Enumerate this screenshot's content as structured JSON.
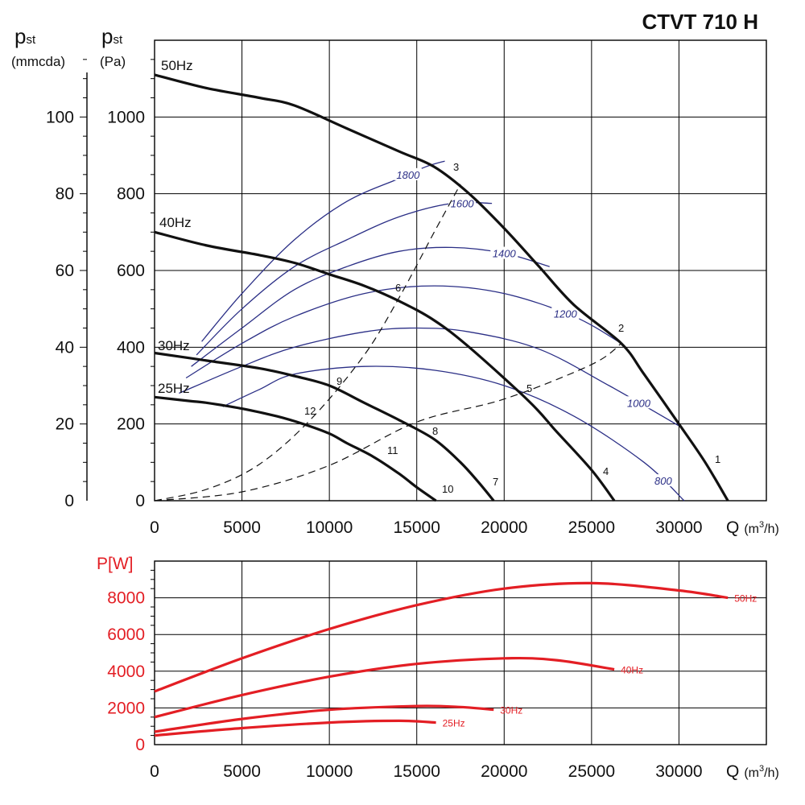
{
  "title": "CTVT 710 H",
  "chart_data": [
    {
      "type": "line",
      "title": "CTVT 710 H",
      "xlabel": "Q (m³/h)",
      "ylabel_left": "pst (mmcda)",
      "ylabel_right": "pst (Pa)",
      "xlim": [
        0,
        35000
      ],
      "ylim_pa": [
        0,
        1200
      ],
      "ylim_mmcda": [
        0,
        120
      ],
      "x_ticks": [
        0,
        5000,
        10000,
        15000,
        20000,
        25000,
        30000
      ],
      "y_ticks_pa": [
        0,
        200,
        400,
        600,
        800,
        1000
      ],
      "y_ticks_mmcda": [
        0,
        20,
        40,
        60,
        80,
        100
      ],
      "grid": true,
      "series": [
        {
          "name": "50Hz",
          "color": "#111111",
          "x": [
            0,
            3000,
            6000,
            8000,
            11000,
            14000,
            16000,
            18000,
            20000,
            22000,
            24000,
            26700,
            28000,
            30000,
            31500,
            32800
          ],
          "y": [
            1110,
            1075,
            1050,
            1030,
            970,
            910,
            870,
            800,
            710,
            610,
            510,
            410,
            330,
            200,
            100,
            0
          ]
        },
        {
          "name": "40Hz",
          "color": "#111111",
          "x": [
            0,
            3000,
            6000,
            8000,
            10000,
            12000,
            14000,
            16000,
            18000,
            21400,
            23000,
            25000,
            26300
          ],
          "y": [
            700,
            665,
            640,
            620,
            590,
            560,
            520,
            470,
            400,
            260,
            180,
            80,
            0
          ]
        },
        {
          "name": "30Hz",
          "color": "#111111",
          "x": [
            0,
            3000,
            6000,
            8000,
            10000,
            12000,
            14000,
            16000,
            17500,
            18500,
            19400
          ],
          "y": [
            385,
            365,
            345,
            325,
            300,
            255,
            210,
            160,
            100,
            50,
            0
          ]
        },
        {
          "name": "25Hz",
          "color": "#111111",
          "x": [
            0,
            2000,
            3000,
            5000,
            7000,
            8500,
            10000,
            11000,
            12500,
            14000,
            15000,
            16100
          ],
          "y": [
            270,
            260,
            255,
            240,
            220,
            200,
            175,
            150,
            115,
            70,
            35,
            0
          ]
        }
      ],
      "rpm_curves": [
        {
          "label": "1800",
          "x": [
            2700,
            5000,
            8000,
            11000,
            14000,
            15500,
            16600
          ],
          "y": [
            415,
            540,
            680,
            780,
            840,
            870,
            885
          ]
        },
        {
          "label": "1600",
          "x": [
            2400,
            5000,
            8000,
            11000,
            14000,
            17000,
            19300
          ],
          "y": [
            380,
            500,
            610,
            680,
            740,
            775,
            775
          ]
        },
        {
          "label": "1400",
          "x": [
            2100,
            5000,
            8000,
            11000,
            14000,
            17000,
            20000,
            22600
          ],
          "y": [
            350,
            450,
            550,
            610,
            650,
            660,
            645,
            610
          ]
        },
        {
          "label": "1200",
          "x": [
            1800,
            5000,
            8000,
            12000,
            16000,
            20000,
            24000,
            26700
          ],
          "y": [
            320,
            410,
            480,
            540,
            560,
            540,
            480,
            410
          ]
        },
        {
          "label": "1000",
          "x": [
            1400,
            5000,
            8000,
            12000,
            15000,
            18000,
            22000,
            26000,
            30000
          ],
          "y": [
            280,
            350,
            400,
            440,
            450,
            440,
            395,
            300,
            195
          ]
        },
        {
          "label": "800",
          "x": [
            3900,
            6000,
            8000,
            12000,
            16000,
            20000,
            24000,
            28000,
            30300
          ],
          "y": [
            245,
            290,
            330,
            350,
            340,
            300,
            220,
            100,
            0
          ]
        }
      ],
      "system_curves": [
        {
          "x": [
            0,
            3000,
            6000,
            9000,
            12000,
            14000,
            16000,
            17500
          ],
          "y": [
            0,
            30,
            95,
            215,
            380,
            530,
            700,
            825
          ]
        },
        {
          "x": [
            0,
            5000,
            10000,
            15000,
            20000,
            25000,
            26700
          ],
          "y": [
            0,
            23,
            92,
            205,
            265,
            355,
            410
          ]
        }
      ],
      "point_labels": [
        "1",
        "2",
        "3",
        "4",
        "5",
        "6",
        "7",
        "8",
        "9",
        "10",
        "11",
        "12"
      ]
    },
    {
      "type": "line",
      "xlabel": "Q (m³/h)",
      "ylabel": "P[W]",
      "xlim": [
        0,
        35000
      ],
      "ylim": [
        0,
        10000
      ],
      "x_ticks": [
        0,
        5000,
        10000,
        15000,
        20000,
        25000,
        30000
      ],
      "y_ticks": [
        0,
        2000,
        4000,
        6000,
        8000
      ],
      "grid": true,
      "series": [
        {
          "name": "50Hz",
          "color": "#e31e24",
          "x": [
            0,
            5000,
            10000,
            15000,
            20000,
            25000,
            30000,
            32800
          ],
          "y": [
            2900,
            4700,
            6300,
            7600,
            8500,
            8800,
            8400,
            8000
          ]
        },
        {
          "name": "40Hz",
          "color": "#e31e24",
          "x": [
            0,
            5000,
            10000,
            15000,
            20000,
            23000,
            26300
          ],
          "y": [
            1500,
            2700,
            3700,
            4400,
            4700,
            4600,
            4100
          ]
        },
        {
          "name": "30Hz",
          "color": "#e31e24",
          "x": [
            0,
            5000,
            10000,
            15000,
            17500,
            19400
          ],
          "y": [
            700,
            1400,
            1900,
            2100,
            2050,
            1900
          ]
        },
        {
          "name": "25Hz",
          "color": "#e31e24",
          "x": [
            0,
            5000,
            10000,
            14000,
            16100
          ],
          "y": [
            500,
            900,
            1200,
            1300,
            1200
          ]
        }
      ]
    }
  ],
  "labels": {
    "pst": "p",
    "st": "st",
    "mmcda": "(mmcda)",
    "pa": "(Pa)",
    "q": "Q",
    "q_unit": "(m³/h)",
    "pw": "P[W]"
  }
}
